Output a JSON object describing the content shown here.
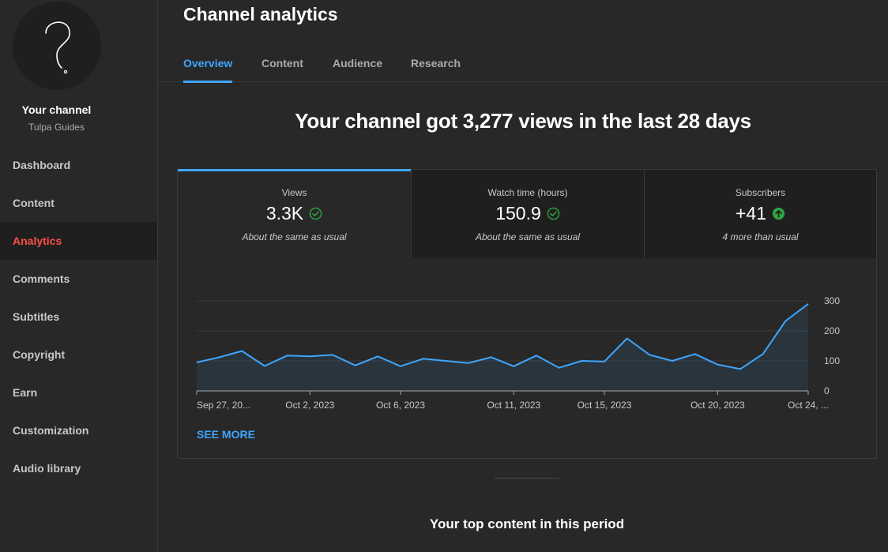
{
  "sidebar": {
    "channel_title": "Your channel",
    "channel_name": "Tulpa Guides",
    "items": [
      {
        "label": "Dashboard"
      },
      {
        "label": "Content"
      },
      {
        "label": "Analytics",
        "active": true
      },
      {
        "label": "Comments"
      },
      {
        "label": "Subtitles"
      },
      {
        "label": "Copyright"
      },
      {
        "label": "Earn"
      },
      {
        "label": "Customization"
      },
      {
        "label": "Audio library"
      }
    ]
  },
  "page": {
    "title": "Channel analytics",
    "tabs": [
      {
        "label": "Overview",
        "active": true
      },
      {
        "label": "Content"
      },
      {
        "label": "Audience"
      },
      {
        "label": "Research"
      }
    ],
    "headline": "Your channel got 3,277 views in the last 28 days"
  },
  "metrics": [
    {
      "label": "Views",
      "value": "3.3K",
      "note": "About the same as usual",
      "icon": "check-circle-icon"
    },
    {
      "label": "Watch time (hours)",
      "value": "150.9",
      "note": "About the same as usual",
      "icon": "check-circle-icon"
    },
    {
      "label": "Subscribers",
      "value": "+41",
      "note": "4 more than usual",
      "icon": "arrow-up-circle-icon"
    }
  ],
  "see_more": "SEE MORE",
  "top_content_heading": "Your top content in this period",
  "colors": {
    "accent": "#3ea6ff",
    "active_nav": "#ff4e45",
    "line": "#3ea6ff",
    "positive": "#2ba640"
  },
  "chart_data": {
    "type": "area",
    "x_tick_labels": [
      "Sep 27, 20...",
      "Oct 2, 2023",
      "Oct 6, 2023",
      "Oct 11, 2023",
      "Oct 15, 2023",
      "Oct 20, 2023",
      "Oct 24, ..."
    ],
    "x_tick_index": [
      0,
      5,
      9,
      14,
      18,
      23,
      27
    ],
    "y_ticks": [
      0,
      100,
      200,
      300
    ],
    "ylim": [
      0,
      300
    ],
    "series": [
      {
        "values": [
          95,
          112,
          133,
          83,
          118,
          115,
          120,
          85,
          115,
          82,
          107,
          100,
          93,
          112,
          82,
          118,
          77,
          100,
          98,
          175,
          120,
          100,
          123,
          88,
          73,
          123,
          233,
          290
        ]
      }
    ],
    "grid": true
  }
}
